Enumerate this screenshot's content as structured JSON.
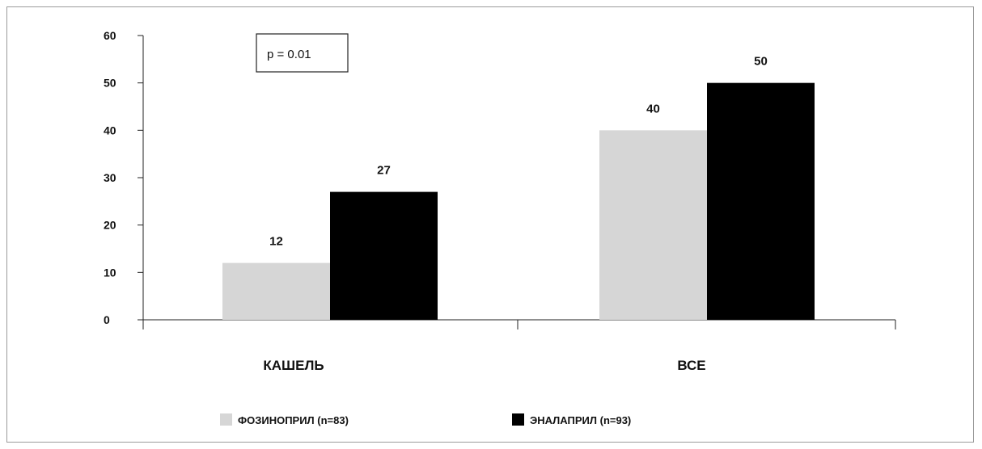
{
  "chart_data": {
    "type": "bar",
    "categories": [
      "КАШЕЛЬ",
      "ВСЕ"
    ],
    "series": [
      {
        "name": "ФОЗИНОПРИЛ (n=83)",
        "values": [
          12,
          40
        ],
        "color": "#d6d6d6"
      },
      {
        "name": "ЭНАЛАПРИЛ (n=93)",
        "values": [
          27,
          50
        ],
        "color": "#000000"
      }
    ],
    "yticks": [
      "0",
      "10",
      "20",
      "30",
      "40",
      "50",
      "60"
    ],
    "ylim": [
      0,
      60
    ],
    "annotation": "p = 0.01",
    "legend_position": "bottom",
    "grid": false
  }
}
